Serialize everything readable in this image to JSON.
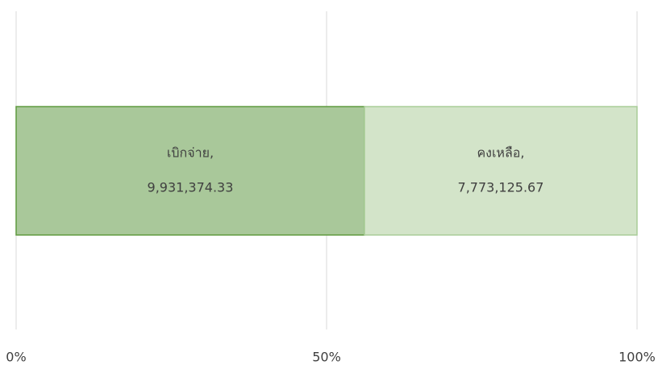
{
  "chart_data": {
    "type": "bar",
    "orientation": "horizontal",
    "stacked": "percent",
    "categories": [
      null
    ],
    "series": [
      {
        "name": "เบิกจ่าย,",
        "color": "#a9c89a",
        "border": "#5f9a3f",
        "values": [
          9931374.33
        ],
        "value_labels": [
          "9,931,374.33"
        ]
      },
      {
        "name": "คงเหลือ,",
        "color": "#d3e4c9",
        "border": "#a9cd98",
        "values": [
          7773125.67
        ],
        "value_labels": [
          "7,773,125.67"
        ]
      }
    ],
    "xlim": [
      0,
      100
    ],
    "xticks": [
      {
        "value": 0,
        "label": "0%"
      },
      {
        "value": 50,
        "label": "50%"
      },
      {
        "value": 100,
        "label": "100%"
      }
    ],
    "grid": true
  }
}
